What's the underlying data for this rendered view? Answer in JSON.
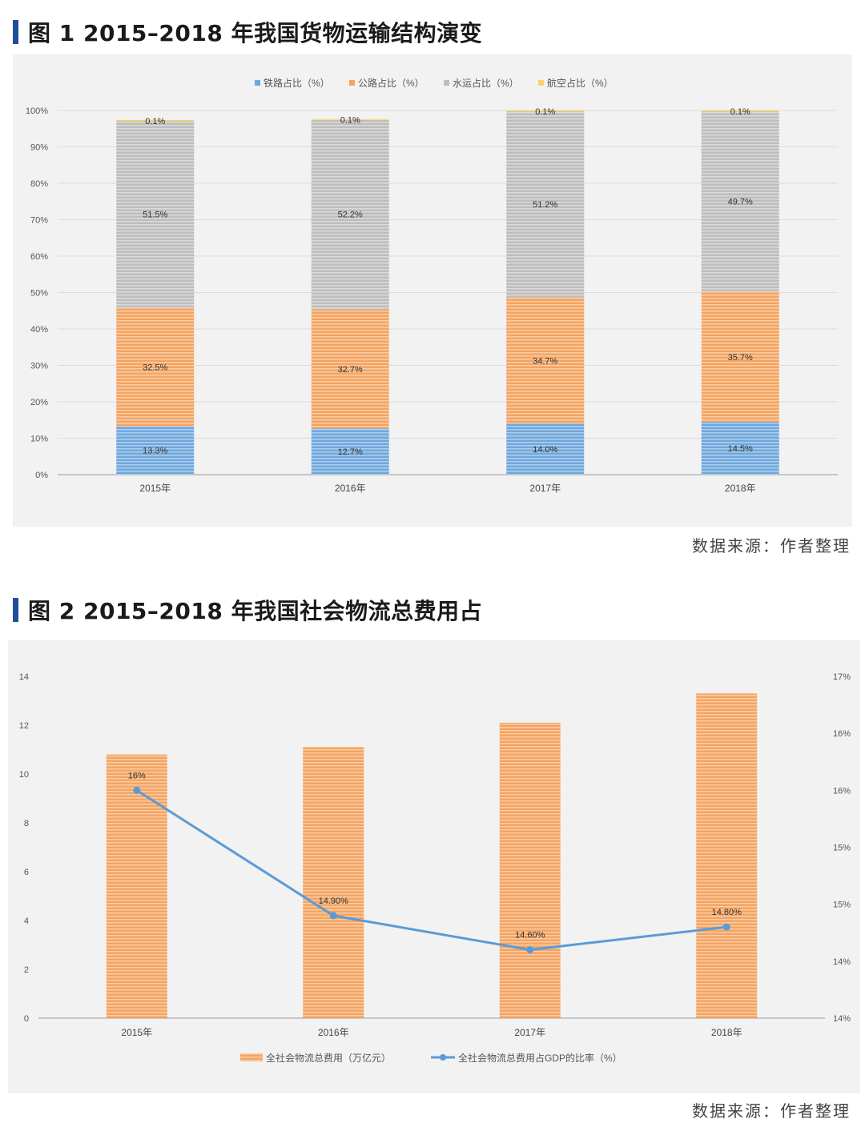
{
  "fig1": {
    "title": "图 1 2015–2018 年我国货物运输结构演变",
    "source": "数据来源：作者整理"
  },
  "fig2": {
    "title": "图 2 2015–2018 年我国社会物流总费用占",
    "source": "数据来源：作者整理"
  },
  "colors": {
    "rail": "#6fa8dc",
    "road": "#f4a460",
    "water": "#bdbdbd",
    "air": "#f6d365",
    "line": "#5b9bd5",
    "title_accent": "#1f4e9a"
  },
  "chart_data": [
    {
      "type": "bar",
      "stacked": true,
      "categories": [
        "2015年",
        "2016年",
        "2017年",
        "2018年"
      ],
      "series": [
        {
          "name": "铁路占比（%）",
          "values": [
            13.3,
            12.7,
            14.0,
            14.5
          ],
          "labels": [
            "13.3%",
            "12.7%",
            "14.0%",
            "14.5%"
          ],
          "color": "#6fa8dc"
        },
        {
          "name": "公路占比（%）",
          "values": [
            32.5,
            32.7,
            34.7,
            35.7
          ],
          "labels": [
            "32.5%",
            "32.7%",
            "34.7%",
            "35.7%"
          ],
          "color": "#f4a460"
        },
        {
          "name": "水运占比（%）",
          "values": [
            51.5,
            52.2,
            51.2,
            49.7
          ],
          "labels": [
            "51.5%",
            "52.2%",
            "51.2%",
            "49.7%"
          ],
          "color": "#bdbdbd"
        },
        {
          "name": "航空占比（%）",
          "values": [
            0.1,
            0.1,
            0.1,
            0.1
          ],
          "labels": [
            "0.1%",
            "0.1%",
            "0.1%",
            "0.1%"
          ],
          "color": "#f6d365"
        }
      ],
      "ylim": [
        0,
        100
      ],
      "yticks": [
        "0%",
        "10%",
        "20%",
        "30%",
        "40%",
        "50%",
        "60%",
        "70%",
        "80%",
        "90%",
        "100%"
      ],
      "legend_position": "top",
      "grid": true
    },
    {
      "type": "bar+line",
      "categories": [
        "2015年",
        "2016年",
        "2017年",
        "2018年"
      ],
      "bar_series": {
        "name": "全社会物流总费用（万亿元）",
        "values": [
          10.8,
          11.1,
          12.1,
          13.3
        ],
        "color": "#f4a460"
      },
      "line_series": {
        "name": "全社会物流总费用占GDP的比率（%）",
        "values": [
          16.0,
          14.9,
          14.6,
          14.8
        ],
        "labels": [
          "16%",
          "14.90%",
          "14.60%",
          "14.80%"
        ],
        "color": "#5b9bd5"
      },
      "ylim_left": [
        0,
        14
      ],
      "yticks_left": [
        "0",
        "2",
        "4",
        "6",
        "8",
        "10",
        "12",
        "14"
      ],
      "ylim_right": [
        14,
        17
      ],
      "yticks_right": [
        "14%",
        "14%",
        "15%",
        "15%",
        "16%",
        "16%",
        "17%"
      ],
      "legend_position": "bottom",
      "grid": false
    }
  ]
}
